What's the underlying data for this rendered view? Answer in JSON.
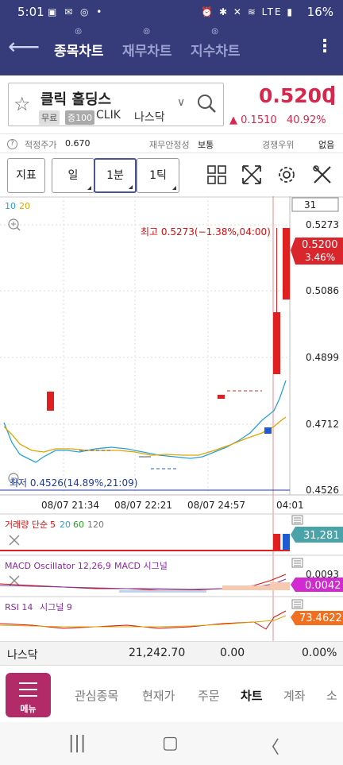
{
  "status_bar": {
    "time": "5:01",
    "battery": "16%",
    "lte": "LTE"
  },
  "nav": {
    "tabs": [
      {
        "label": "종목차트",
        "active": true
      },
      {
        "label": "재무차트",
        "active": false
      },
      {
        "label": "지수차트",
        "active": false
      }
    ]
  },
  "stock": {
    "name": "클릭 홀딩스",
    "badge_free": "무료",
    "badge_margin": "증100",
    "ticker": "CLIK",
    "market": "나스닥",
    "price": "0.5200",
    "change": "0.1510",
    "change_pct": "40.92%"
  },
  "info_row": {
    "fair_price_label": "적정주가",
    "fair_price_value": "0.670",
    "stability_label": "재무안정성",
    "stability_value": "보통",
    "competition_label": "경쟁우위",
    "competition_value": "없음"
  },
  "toolbar": {
    "indicator_label": "지표",
    "day_label": "일",
    "minute_label": "1분",
    "tick_label": "1틱"
  },
  "chart": {
    "ma_labels": [
      "10",
      "20"
    ],
    "count_box": "31",
    "high_label": "최고 0.5273(−1.38%,04:00)",
    "low_label": "최저 0.4526(14.89%,21:09)",
    "price_scale": [
      "0.5273",
      "0.5086",
      "0.4899",
      "0.4712",
      "0.4526"
    ],
    "current_price_tag": "0.5200",
    "current_pct_tag": "3.46%",
    "time_labels": [
      "08/07 21:34",
      "08/07 22:21",
      "08/07 24:57",
      "04:01"
    ],
    "volume_label_prefix": "거래량 단순",
    "volume_ma": [
      "5",
      "20",
      "60",
      "120"
    ],
    "volume_tag": "31,281",
    "macd_label": "MACD Oscillator 12,26,9",
    "macd_signal": "MACD 시그널",
    "macd_scale": "0.0093",
    "macd_tag": "0.0042",
    "rsi_label": "RSI 14",
    "rsi_signal": "시그널 9",
    "rsi_tag": "73.4622",
    "colors": {
      "up": "#e02020",
      "down": "#1e5bd0",
      "ma10": "#2aa0d8",
      "ma20": "#e0a400"
    }
  },
  "market_row": {
    "name": "나스닥",
    "value": "21,242.70",
    "change": "0.00",
    "pct": "0.00%"
  },
  "bottom_menu": {
    "menu_label": "메뉴",
    "items": [
      {
        "label": "관심종목",
        "active": false
      },
      {
        "label": "현재가",
        "active": false
      },
      {
        "label": "주문",
        "active": false
      },
      {
        "label": "차트",
        "active": true
      },
      {
        "label": "계좌",
        "active": false
      },
      {
        "label": "소",
        "active": false
      }
    ]
  }
}
